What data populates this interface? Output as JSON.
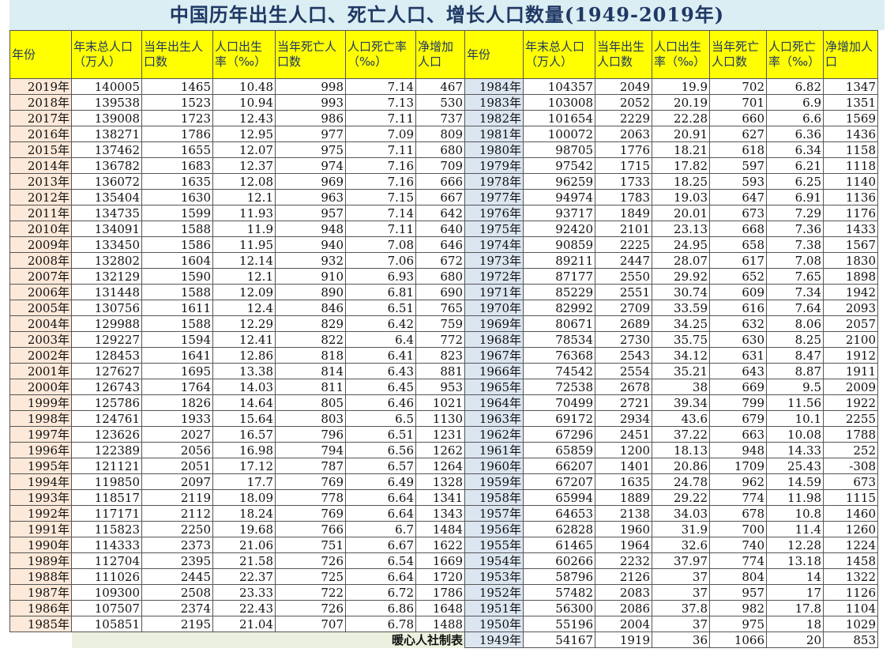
{
  "title": "中国历年出生人口、死亡人口、增长人口数量(1949-2019年)",
  "headers": [
    "年份",
    "年末总人口（万人）",
    "当年出生人口数",
    "人口出生率（‰）",
    "当年死亡人口数",
    "人口死亡率（‰）",
    "净增加人口",
    "年份",
    "年末总人口（万人）",
    "当年出生人口数",
    "人口出生率（‰）",
    "当年死亡人口数",
    "人口死亡率（‰）",
    "净增加人口"
  ],
  "left_rows": [
    [
      "2019年",
      "140005",
      "1465",
      "10.48",
      "998",
      "7.14",
      "467"
    ],
    [
      "2018年",
      "139538",
      "1523",
      "10.94",
      "993",
      "7.13",
      "530"
    ],
    [
      "2017年",
      "139008",
      "1723",
      "12.43",
      "986",
      "7.11",
      "737"
    ],
    [
      "2016年",
      "138271",
      "1786",
      "12.95",
      "977",
      "7.09",
      "809"
    ],
    [
      "2015年",
      "137462",
      "1655",
      "12.07",
      "975",
      "7.11",
      "680"
    ],
    [
      "2014年",
      "136782",
      "1683",
      "12.37",
      "974",
      "7.16",
      "709"
    ],
    [
      "2013年",
      "136072",
      "1635",
      "12.08",
      "969",
      "7.16",
      "666"
    ],
    [
      "2012年",
      "135404",
      "1630",
      "12.1",
      "963",
      "7.15",
      "667"
    ],
    [
      "2011年",
      "134735",
      "1599",
      "11.93",
      "957",
      "7.14",
      "642"
    ],
    [
      "2010年",
      "134091",
      "1588",
      "11.9",
      "948",
      "7.11",
      "640"
    ],
    [
      "2009年",
      "133450",
      "1586",
      "11.95",
      "940",
      "7.08",
      "646"
    ],
    [
      "2008年",
      "132802",
      "1604",
      "12.14",
      "932",
      "7.06",
      "672"
    ],
    [
      "2007年",
      "132129",
      "1590",
      "12.1",
      "910",
      "6.93",
      "680"
    ],
    [
      "2006年",
      "131448",
      "1588",
      "12.09",
      "890",
      "6.81",
      "690"
    ],
    [
      "2005年",
      "130756",
      "1611",
      "12.4",
      "846",
      "6.51",
      "765"
    ],
    [
      "2004年",
      "129988",
      "1588",
      "12.29",
      "829",
      "6.42",
      "759"
    ],
    [
      "2003年",
      "129227",
      "1594",
      "12.41",
      "822",
      "6.4",
      "772"
    ],
    [
      "2002年",
      "128453",
      "1641",
      "12.86",
      "818",
      "6.41",
      "823"
    ],
    [
      "2001年",
      "127627",
      "1695",
      "13.38",
      "814",
      "6.43",
      "881"
    ],
    [
      "2000年",
      "126743",
      "1764",
      "14.03",
      "811",
      "6.45",
      "953"
    ],
    [
      "1999年",
      "125786",
      "1826",
      "14.64",
      "805",
      "6.46",
      "1021"
    ],
    [
      "1998年",
      "124761",
      "1933",
      "15.64",
      "803",
      "6.5",
      "1130"
    ],
    [
      "1997年",
      "123626",
      "2027",
      "16.57",
      "796",
      "6.51",
      "1231"
    ],
    [
      "1996年",
      "122389",
      "2056",
      "16.98",
      "794",
      "6.56",
      "1262"
    ],
    [
      "1995年",
      "121121",
      "2051",
      "17.12",
      "787",
      "6.57",
      "1264"
    ],
    [
      "1994年",
      "119850",
      "2097",
      "17.7",
      "769",
      "6.49",
      "1328"
    ],
    [
      "1993年",
      "118517",
      "2119",
      "18.09",
      "778",
      "6.64",
      "1341"
    ],
    [
      "1992年",
      "117171",
      "2112",
      "18.24",
      "769",
      "6.64",
      "1343"
    ],
    [
      "1991年",
      "115823",
      "2250",
      "19.68",
      "766",
      "6.7",
      "1484"
    ],
    [
      "1990年",
      "114333",
      "2373",
      "21.06",
      "751",
      "6.67",
      "1622"
    ],
    [
      "1989年",
      "112704",
      "2395",
      "21.58",
      "726",
      "6.54",
      "1669"
    ],
    [
      "1988年",
      "111026",
      "2445",
      "22.37",
      "725",
      "6.64",
      "1720"
    ],
    [
      "1987年",
      "109300",
      "2508",
      "23.33",
      "722",
      "6.72",
      "1786"
    ],
    [
      "1986年",
      "107507",
      "2374",
      "22.43",
      "726",
      "6.86",
      "1648"
    ],
    [
      "1985年",
      "105851",
      "2195",
      "21.04",
      "707",
      "6.78",
      "1488"
    ]
  ],
  "right_rows": [
    [
      "1984年",
      "104357",
      "2049",
      "19.9",
      "702",
      "6.82",
      "1347"
    ],
    [
      "1983年",
      "103008",
      "2052",
      "20.19",
      "701",
      "6.9",
      "1351"
    ],
    [
      "1982年",
      "101654",
      "2229",
      "22.28",
      "660",
      "6.6",
      "1569"
    ],
    [
      "1981年",
      "100072",
      "2063",
      "20.91",
      "627",
      "6.36",
      "1436"
    ],
    [
      "1980年",
      "98705",
      "1776",
      "18.21",
      "618",
      "6.34",
      "1158"
    ],
    [
      "1979年",
      "97542",
      "1715",
      "17.82",
      "597",
      "6.21",
      "1118"
    ],
    [
      "1978年",
      "96259",
      "1733",
      "18.25",
      "593",
      "6.25",
      "1140"
    ],
    [
      "1977年",
      "94974",
      "1783",
      "19.03",
      "647",
      "6.91",
      "1136"
    ],
    [
      "1976年",
      "93717",
      "1849",
      "20.01",
      "673",
      "7.29",
      "1176"
    ],
    [
      "1975年",
      "92420",
      "2101",
      "23.13",
      "668",
      "7.36",
      "1433"
    ],
    [
      "1974年",
      "90859",
      "2225",
      "24.95",
      "658",
      "7.38",
      "1567"
    ],
    [
      "1973年",
      "89211",
      "2447",
      "28.07",
      "617",
      "7.08",
      "1830"
    ],
    [
      "1972年",
      "87177",
      "2550",
      "29.92",
      "652",
      "7.65",
      "1898"
    ],
    [
      "1971年",
      "85229",
      "2551",
      "30.74",
      "609",
      "7.34",
      "1942"
    ],
    [
      "1970年",
      "82992",
      "2709",
      "33.59",
      "616",
      "7.64",
      "2093"
    ],
    [
      "1969年",
      "80671",
      "2689",
      "34.25",
      "632",
      "8.06",
      "2057"
    ],
    [
      "1968年",
      "78534",
      "2730",
      "35.75",
      "630",
      "8.25",
      "2100"
    ],
    [
      "1967年",
      "76368",
      "2543",
      "34.12",
      "631",
      "8.47",
      "1912"
    ],
    [
      "1966年",
      "74542",
      "2554",
      "35.21",
      "643",
      "8.87",
      "1911"
    ],
    [
      "1965年",
      "72538",
      "2678",
      "38",
      "669",
      "9.5",
      "2009"
    ],
    [
      "1964年",
      "70499",
      "2721",
      "39.34",
      "799",
      "11.56",
      "1922"
    ],
    [
      "1963年",
      "69172",
      "2934",
      "43.6",
      "679",
      "10.1",
      "2255"
    ],
    [
      "1962年",
      "67296",
      "2451",
      "37.22",
      "663",
      "10.08",
      "1788"
    ],
    [
      "1961年",
      "65859",
      "1200",
      "18.13",
      "948",
      "14.33",
      "252"
    ],
    [
      "1960年",
      "66207",
      "1401",
      "20.86",
      "1709",
      "25.43",
      "-308"
    ],
    [
      "1959年",
      "67207",
      "1635",
      "24.78",
      "962",
      "14.59",
      "673"
    ],
    [
      "1958年",
      "65994",
      "1889",
      "29.22",
      "774",
      "11.98",
      "1115"
    ],
    [
      "1957年",
      "64653",
      "2138",
      "34.03",
      "678",
      "10.8",
      "1460"
    ],
    [
      "1956年",
      "62828",
      "1960",
      "31.9",
      "700",
      "11.4",
      "1260"
    ],
    [
      "1955年",
      "61465",
      "1964",
      "32.6",
      "740",
      "12.28",
      "1224"
    ],
    [
      "1954年",
      "60266",
      "2232",
      "37.97",
      "774",
      "13.18",
      "1458"
    ],
    [
      "1953年",
      "58796",
      "2126",
      "37",
      "804",
      "14",
      "1322"
    ],
    [
      "1952年",
      "57482",
      "2083",
      "37",
      "957",
      "17",
      "1126"
    ],
    [
      "1951年",
      "56300",
      "2086",
      "37.8",
      "982",
      "17.8",
      "1104"
    ],
    [
      "1950年",
      "55196",
      "2004",
      "37",
      "975",
      "18",
      "1029"
    ]
  ],
  "footer": {
    "credit": "暖心人社制表",
    "row": [
      "1949年",
      "54167",
      "1919",
      "36",
      "1066",
      "20",
      "853"
    ]
  }
}
